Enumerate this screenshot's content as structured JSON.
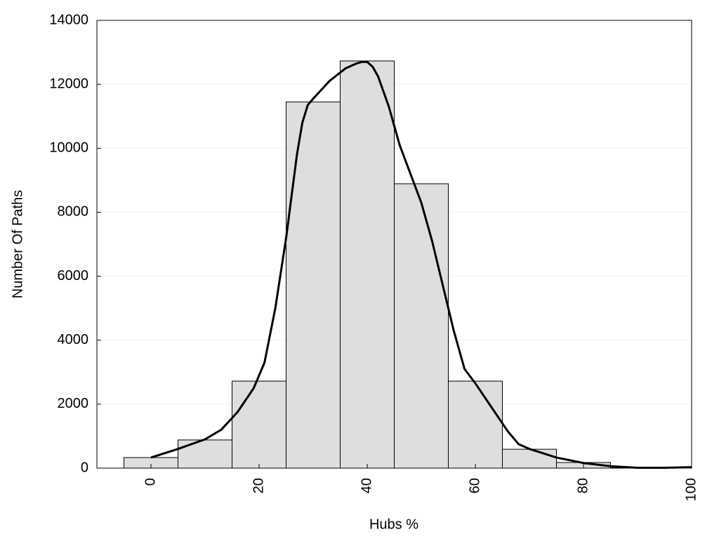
{
  "chart_data": {
    "type": "histogram",
    "xlabel": "Hubs %",
    "ylabel": "Number Of Paths",
    "bins": [
      -5,
      5,
      15,
      25,
      35,
      45,
      55,
      65,
      75,
      85,
      95
    ],
    "values": [
      330,
      880,
      2720,
      11450,
      12730,
      8890,
      2720,
      590,
      175,
      20
    ],
    "color": "#dedede",
    "line": {
      "x": [
        0,
        5,
        10,
        13,
        16,
        19,
        21,
        23,
        25,
        27,
        28,
        29,
        30,
        33,
        36,
        38,
        39,
        40,
        41,
        42,
        44,
        46,
        48,
        50,
        52,
        54,
        56,
        58,
        60,
        63,
        66,
        68,
        70,
        75,
        80,
        85,
        90,
        95,
        100
      ],
      "values": [
        330,
        600,
        900,
        1200,
        1750,
        2500,
        3300,
        5000,
        7200,
        9800,
        10800,
        11350,
        11550,
        12100,
        12500,
        12650,
        12700,
        12700,
        12550,
        12250,
        11300,
        10100,
        9200,
        8300,
        7100,
        5700,
        4300,
        3100,
        2650,
        1900,
        1150,
        750,
        600,
        330,
        160,
        60,
        10,
        10,
        30
      ],
      "color": "#000000"
    },
    "xlim": [
      -10,
      100
    ],
    "xticks": [
      0,
      20,
      40,
      60,
      80,
      100
    ],
    "ylim": [
      0,
      14000
    ],
    "yticks": [
      0,
      2000,
      4000,
      6000,
      8000,
      10000,
      12000,
      14000
    ],
    "grid": true
  }
}
